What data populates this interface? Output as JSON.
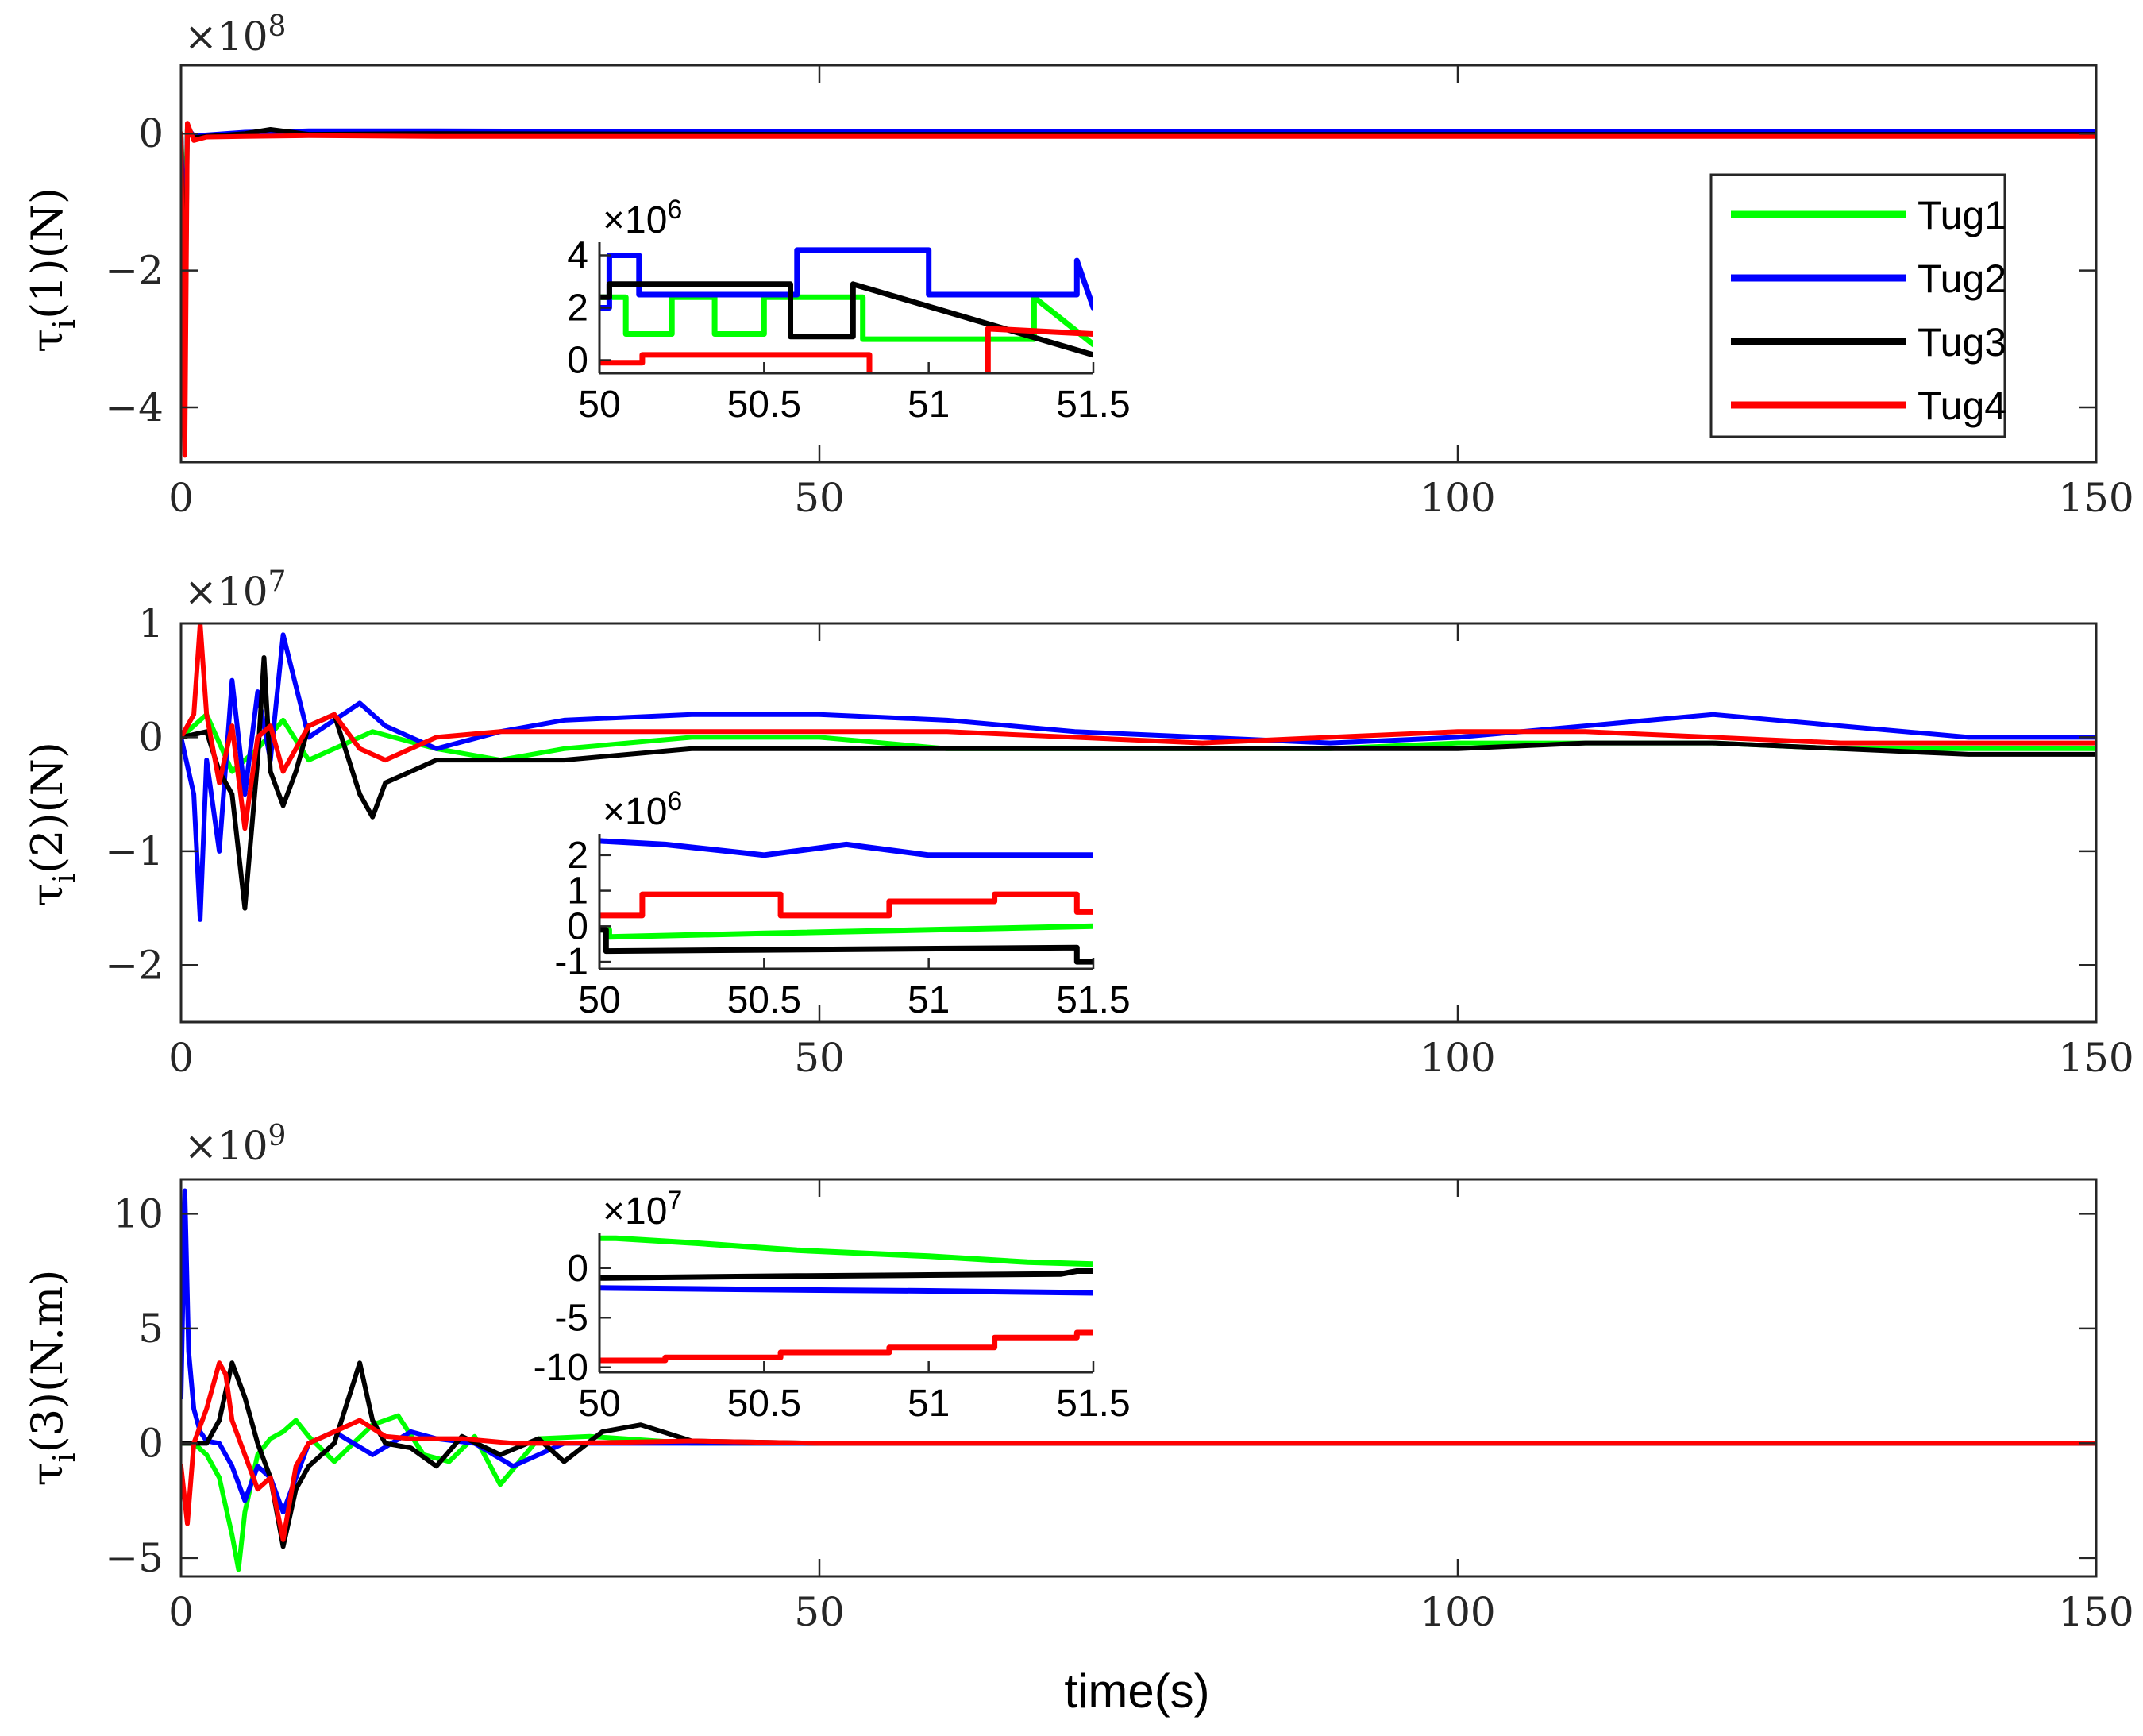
{
  "chart_data": [
    {
      "type": "line",
      "ylabel_parts": {
        "main": "τ",
        "sub": "i",
        "rest": "(1)(N)"
      },
      "exponent": {
        "base": "×10",
        "power": "8"
      },
      "xlim": [
        0,
        150
      ],
      "ylim": [
        -4.8,
        1
      ],
      "xticks": [
        0,
        50,
        100,
        150
      ],
      "xtick_labels": [
        "0",
        "50",
        "100",
        "150"
      ],
      "yticks": [
        -4,
        -2,
        0
      ],
      "ytick_labels": [
        "−4",
        "−2",
        "0"
      ],
      "colors": {
        "Tug1": "#00ff00",
        "Tug2": "#0000ff",
        "Tug3": "#000000",
        "Tug4": "#ff0000"
      },
      "series": [
        {
          "name": "Tug1",
          "x": [
            0,
            0.3,
            0.5,
            1,
            2,
            5,
            10,
            20,
            50,
            100,
            150
          ],
          "y": [
            0,
            -1.5,
            0.1,
            -0.05,
            -0.04,
            -0.03,
            -0.02,
            -0.02,
            -0.02,
            -0.02,
            -0.02
          ]
        },
        {
          "name": "Tug2",
          "x": [
            0,
            0.3,
            0.5,
            1,
            2,
            5,
            10,
            20,
            50,
            100,
            150
          ],
          "y": [
            0,
            -2.2,
            0.08,
            -0.03,
            -0.02,
            0.02,
            0.04,
            0.04,
            0.03,
            0.03,
            0.03
          ]
        },
        {
          "name": "Tug3",
          "x": [
            0,
            0.3,
            0.5,
            1,
            2,
            5,
            7,
            10,
            20,
            50,
            100,
            150
          ],
          "y": [
            0,
            -3.5,
            0.1,
            -0.06,
            -0.04,
            0.0,
            0.06,
            -0.01,
            0.0,
            -0.01,
            -0.01,
            -0.01
          ]
        },
        {
          "name": "Tug4",
          "x": [
            0,
            0.3,
            0.5,
            1,
            2,
            5,
            10,
            20,
            50,
            100,
            150
          ],
          "y": [
            0,
            -4.7,
            0.15,
            -0.1,
            -0.05,
            -0.04,
            -0.03,
            -0.04,
            -0.04,
            -0.04,
            -0.04
          ]
        }
      ],
      "legend": {
        "entries": [
          "Tug1",
          "Tug2",
          "Tug3",
          "Tug4"
        ],
        "location": "right"
      },
      "inset": {
        "exponent": {
          "base": "×10",
          "power": "6"
        },
        "xlim": [
          50,
          51.5
        ],
        "ylim": [
          -0.5,
          4.5
        ],
        "xticks": [
          50,
          50.5,
          51,
          51.5
        ],
        "xtick_labels": [
          "50",
          "50.5",
          "51",
          "51.5"
        ],
        "yticks": [
          0,
          2,
          4
        ],
        "ytick_labels": [
          "0",
          "2",
          "4"
        ],
        "series": [
          {
            "name": "Tug1",
            "x": [
              50,
              50.08,
              50.08,
              50.22,
              50.22,
              50.35,
              50.35,
              50.5,
              50.5,
              50.8,
              50.8,
              51.32,
              51.32,
              51.5
            ],
            "y": [
              2.4,
              2.4,
              1.0,
              1.0,
              2.4,
              2.4,
              1.0,
              1.0,
              2.4,
              2.4,
              0.8,
              0.8,
              2.4,
              0.6
            ]
          },
          {
            "name": "Tug2",
            "x": [
              50,
              50.03,
              50.03,
              50.12,
              50.12,
              50.6,
              50.6,
              51.0,
              51.0,
              51.45,
              51.45,
              51.5
            ],
            "y": [
              2.0,
              2.0,
              4.0,
              4.0,
              2.5,
              2.5,
              4.2,
              4.2,
              2.5,
              2.5,
              3.8,
              2.0
            ]
          },
          {
            "name": "Tug3",
            "x": [
              50,
              50.03,
              50.03,
              50.58,
              50.58,
              50.77,
              50.77,
              51.5
            ],
            "y": [
              2.4,
              2.4,
              2.9,
              2.9,
              0.9,
              0.9,
              2.9,
              0.2
            ]
          },
          {
            "name": "Tug4",
            "x": [
              50,
              50.13,
              50.13,
              50.82,
              50.82,
              51.18,
              51.18,
              51.5
            ],
            "y": [
              -0.1,
              -0.1,
              0.2,
              0.2,
              -0.7,
              -0.7,
              1.2,
              1.0
            ]
          }
        ]
      }
    },
    {
      "type": "line",
      "ylabel_parts": {
        "main": "τ",
        "sub": "i",
        "rest": "(2)(N)"
      },
      "exponent": {
        "base": "×10",
        "power": "7"
      },
      "xlim": [
        0,
        150
      ],
      "ylim": [
        -2.5,
        1
      ],
      "xticks": [
        0,
        50,
        100,
        150
      ],
      "xtick_labels": [
        "0",
        "50",
        "100",
        "150"
      ],
      "yticks": [
        -2,
        -1,
        0,
        1
      ],
      "ytick_labels": [
        "−2",
        "−1",
        "0",
        "1"
      ],
      "series": [
        {
          "name": "Tug1",
          "x": [
            0,
            2,
            4,
            6,
            8,
            10,
            15,
            20,
            25,
            30,
            40,
            50,
            60,
            70,
            80,
            90,
            100,
            110,
            120,
            130,
            140,
            150
          ],
          "y": [
            0,
            0.2,
            -0.3,
            -0.1,
            0.15,
            -0.2,
            0.05,
            -0.1,
            -0.2,
            -0.1,
            0.0,
            0.0,
            -0.1,
            -0.1,
            -0.1,
            -0.1,
            -0.05,
            -0.05,
            -0.05,
            -0.1,
            -0.1,
            -0.1
          ]
        },
        {
          "name": "Tug2",
          "x": [
            0,
            1,
            1.5,
            2,
            3,
            4,
            5,
            6,
            7,
            8,
            10,
            14,
            16,
            20,
            25,
            30,
            40,
            50,
            60,
            70,
            80,
            90,
            100,
            110,
            120,
            130,
            140,
            150
          ],
          "y": [
            0,
            -0.5,
            -1.6,
            -0.2,
            -1.0,
            0.5,
            -0.5,
            0.4,
            -0.2,
            0.9,
            0.0,
            0.3,
            0.1,
            -0.1,
            0.05,
            0.15,
            0.2,
            0.2,
            0.15,
            0.05,
            0.0,
            -0.05,
            0.0,
            0.1,
            0.2,
            0.1,
            0.0,
            0.0
          ]
        },
        {
          "name": "Tug3",
          "x": [
            0,
            2,
            3,
            4,
            5,
            6,
            6.5,
            7,
            8,
            9,
            10,
            12,
            14,
            15,
            16,
            18,
            20,
            25,
            30,
            40,
            50,
            60,
            70,
            80,
            90,
            100,
            110,
            120,
            130,
            140,
            150
          ],
          "y": [
            0,
            0.05,
            -0.3,
            -0.5,
            -1.5,
            -0.2,
            0.7,
            -0.3,
            -0.6,
            -0.3,
            0.1,
            0.2,
            -0.5,
            -0.7,
            -0.4,
            -0.3,
            -0.2,
            -0.2,
            -0.2,
            -0.1,
            -0.1,
            -0.1,
            -0.1,
            -0.1,
            -0.1,
            -0.1,
            -0.05,
            -0.05,
            -0.1,
            -0.15,
            -0.15
          ]
        },
        {
          "name": "Tug4",
          "x": [
            0,
            1,
            1.5,
            2,
            3,
            4,
            5,
            6,
            7,
            8,
            10,
            12,
            14,
            16,
            20,
            25,
            30,
            40,
            50,
            60,
            70,
            80,
            90,
            100,
            110,
            120,
            130,
            140,
            150
          ],
          "y": [
            0,
            0.2,
            1.0,
            0.2,
            -0.4,
            0.1,
            -0.8,
            0.0,
            0.1,
            -0.3,
            0.1,
            0.2,
            -0.1,
            -0.2,
            0.0,
            0.05,
            0.05,
            0.05,
            0.05,
            0.05,
            0.0,
            -0.05,
            0.0,
            0.05,
            0.05,
            0.0,
            -0.05,
            -0.05,
            -0.05
          ]
        }
      ],
      "inset": {
        "exponent": {
          "base": "×10",
          "power": "6"
        },
        "xlim": [
          50,
          51.5
        ],
        "ylim": [
          -1.2,
          2.6
        ],
        "xticks": [
          50,
          50.5,
          51,
          51.5
        ],
        "xtick_labels": [
          "50",
          "50.5",
          "51",
          "51.5"
        ],
        "yticks": [
          -1,
          0,
          1,
          2
        ],
        "ytick_labels": [
          "-1",
          "0",
          "1",
          "2"
        ],
        "series": [
          {
            "name": "Tug1",
            "x": [
              50,
              50.03,
              50.03,
              50.5,
              51.5
            ],
            "y": [
              -0.1,
              -0.1,
              -0.3,
              -0.2,
              0.0
            ]
          },
          {
            "name": "Tug2",
            "x": [
              50,
              50.2,
              50.5,
              50.75,
              51.0,
              51.5
            ],
            "y": [
              2.4,
              2.3,
              2.0,
              2.3,
              2.0,
              2.0
            ]
          },
          {
            "name": "Tug3",
            "x": [
              50,
              50.02,
              50.02,
              51.45,
              51.45,
              51.5
            ],
            "y": [
              -0.1,
              -0.1,
              -0.7,
              -0.6,
              -1.0,
              -1.0
            ]
          },
          {
            "name": "Tug4",
            "x": [
              50,
              50.13,
              50.13,
              50.55,
              50.55,
              50.88,
              50.88,
              51.2,
              51.2,
              51.45,
              51.45,
              51.5
            ],
            "y": [
              0.3,
              0.3,
              0.9,
              0.9,
              0.3,
              0.3,
              0.7,
              0.7,
              0.9,
              0.9,
              0.4,
              0.4
            ]
          }
        ]
      }
    },
    {
      "type": "line",
      "ylabel_parts": {
        "main": "τ",
        "sub": "i",
        "rest": "(3)(N.m)"
      },
      "exponent": {
        "base": "×10",
        "power": "9"
      },
      "xlim": [
        0,
        150
      ],
      "ylim": [
        -5.8,
        11.5
      ],
      "xticks": [
        0,
        50,
        100,
        150
      ],
      "xtick_labels": [
        "0",
        "50",
        "100",
        "150"
      ],
      "yticks": [
        -5,
        0,
        5,
        10
      ],
      "ytick_labels": [
        "−5",
        "0",
        "5",
        "10"
      ],
      "xlabel": "time(s)",
      "series": [
        {
          "name": "Tug1",
          "x": [
            0,
            1,
            2,
            3,
            4,
            4.5,
            5,
            6,
            7,
            8,
            9,
            10,
            12,
            15,
            17,
            19,
            21,
            23,
            25,
            28,
            32,
            40,
            50,
            150
          ],
          "y": [
            0,
            0,
            -0.5,
            -1.5,
            -4.0,
            -5.5,
            -3.0,
            -0.5,
            0.2,
            0.5,
            1.0,
            0.3,
            -0.8,
            0.8,
            1.2,
            -0.5,
            -0.8,
            0.3,
            -1.8,
            0.2,
            0.3,
            0.0,
            0.0,
            0.0
          ]
        },
        {
          "name": "Tug2",
          "x": [
            0,
            0.3,
            0.6,
            1,
            1.5,
            2,
            3,
            4,
            5,
            6,
            7,
            8,
            10,
            12,
            15,
            18,
            20,
            23,
            26,
            30,
            40,
            50,
            150
          ],
          "y": [
            2.0,
            11.0,
            4.0,
            1.5,
            0.5,
            0.1,
            0.0,
            -1.0,
            -2.5,
            -1.0,
            -1.5,
            -3.0,
            0.0,
            0.5,
            -0.5,
            0.5,
            0.2,
            0.0,
            -1.0,
            0.0,
            0.0,
            0.0,
            0.0
          ]
        },
        {
          "name": "Tug3",
          "x": [
            0,
            1,
            2,
            3,
            4,
            5,
            6,
            7,
            8,
            9,
            10,
            12,
            14,
            15,
            16,
            18,
            20,
            22,
            25,
            28,
            30,
            33,
            36,
            40,
            50,
            150
          ],
          "y": [
            0,
            0,
            0,
            1.0,
            3.5,
            2.0,
            0.0,
            -1.5,
            -4.5,
            -2.0,
            -1.0,
            0.0,
            3.5,
            1.0,
            0.0,
            -0.2,
            -1.0,
            0.3,
            -0.5,
            0.2,
            -0.8,
            0.5,
            0.8,
            0.1,
            0.0,
            0.0
          ]
        },
        {
          "name": "Tug4",
          "x": [
            0,
            0.5,
            1,
            2,
            3,
            3.5,
            4,
            5,
            6,
            7,
            8,
            9,
            10,
            12,
            14,
            16,
            18,
            22,
            26,
            30,
            40,
            50,
            150
          ],
          "y": [
            -1.0,
            -3.5,
            0.0,
            1.5,
            3.5,
            3.0,
            1.0,
            -0.5,
            -2.0,
            -1.5,
            -4.2,
            -1.0,
            0.0,
            0.5,
            1.0,
            0.3,
            0.2,
            0.2,
            0.0,
            0.0,
            0.1,
            0.0,
            0.0
          ]
        }
      ],
      "inset": {
        "exponent": {
          "base": "×10",
          "power": "7"
        },
        "xlim": [
          50,
          51.5
        ],
        "ylim": [
          -10.5,
          3.5
        ],
        "xticks": [
          50,
          50.5,
          51,
          51.5
        ],
        "xtick_labels": [
          "50",
          "50.5",
          "51",
          "51.5"
        ],
        "yticks": [
          -10,
          -5,
          0
        ],
        "ytick_labels": [
          "-10",
          "-5",
          "0"
        ],
        "series": [
          {
            "name": "Tug1",
            "x": [
              50,
              50.05,
              50.3,
              50.6,
              51.0,
              51.3,
              51.5
            ],
            "y": [
              3.0,
              3.0,
              2.5,
              1.8,
              1.2,
              0.6,
              0.4
            ]
          },
          {
            "name": "Tug2",
            "x": [
              50,
              50.3,
              50.6,
              51.0,
              51.5
            ],
            "y": [
              -2.0,
              -2.1,
              -2.2,
              -2.3,
              -2.5
            ]
          },
          {
            "name": "Tug3",
            "x": [
              50,
              50.3,
              50.6,
              51.0,
              51.4,
              51.45,
              51.5
            ],
            "y": [
              -1.0,
              -0.9,
              -0.8,
              -0.7,
              -0.6,
              -0.3,
              -0.3
            ]
          },
          {
            "name": "Tug4",
            "x": [
              50,
              50.2,
              50.2,
              50.55,
              50.55,
              50.88,
              50.88,
              51.2,
              51.2,
              51.45,
              51.45,
              51.5
            ],
            "y": [
              -9.3,
              -9.3,
              -9.0,
              -9.0,
              -8.5,
              -8.5,
              -8.0,
              -8.0,
              -7.0,
              -7.0,
              -6.5,
              -6.5
            ]
          }
        ]
      }
    }
  ]
}
